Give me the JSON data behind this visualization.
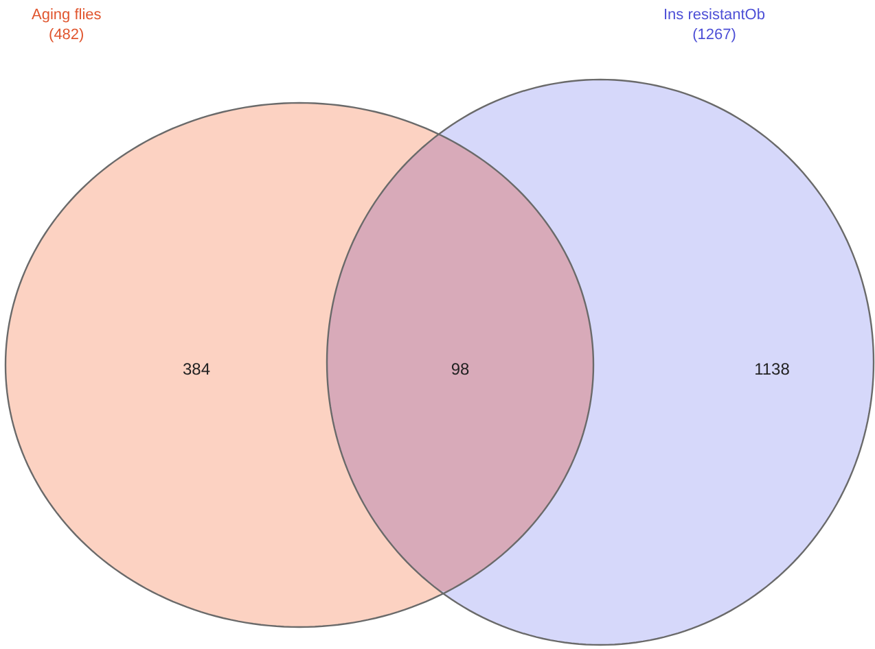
{
  "chart_data": {
    "type": "other",
    "categories": [
      null,
      null,
      null
    ],
    "values": [
      384,
      98,
      1138
    ],
    "colors": [
      "#fcd2c2",
      "#d8aab9",
      "#d6d8fa"
    ],
    "annotations": [
      "Aging flies\n(482)",
      "Ins resistantOb\n(1267)"
    ],
    "data_labels": true
  }
}
